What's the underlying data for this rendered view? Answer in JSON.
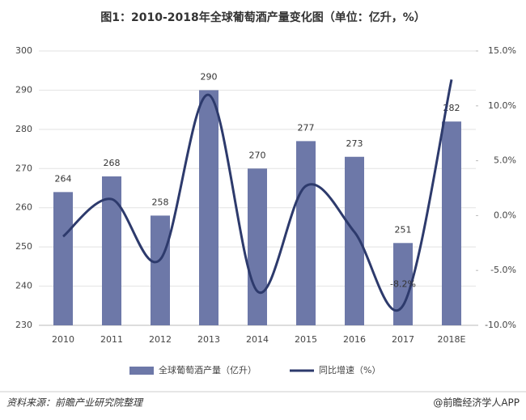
{
  "chart_data": {
    "type": "bar",
    "title": "图1：2010-2018年全球葡萄酒产量变化图（单位：亿升，%）",
    "categories": [
      "2010",
      "2011",
      "2012",
      "2013",
      "2014",
      "2015",
      "2016",
      "2017",
      "2018E"
    ],
    "series": [
      {
        "name": "全球葡萄酒产量（亿升）",
        "type": "bar",
        "axis": "y",
        "color": "#6d78a8",
        "values": [
          264,
          268,
          258,
          290,
          270,
          277,
          273,
          251,
          282
        ]
      },
      {
        "name": "同比增速（%）",
        "type": "line",
        "axis": "y2",
        "color": "#2d3a6c",
        "values": [
          -1.9,
          1.5,
          -4.0,
          11.0,
          -6.9,
          2.7,
          -1.5,
          -8.2,
          12.4
        ],
        "value_labels": [
          null,
          null,
          null,
          null,
          null,
          null,
          null,
          "-8.2%",
          null
        ]
      }
    ],
    "ylim": [
      230,
      300
    ],
    "yticks": [
      230,
      240,
      250,
      260,
      270,
      280,
      290,
      300
    ],
    "y2lim": [
      -10,
      15
    ],
    "y2ticks": [
      {
        "value": -10,
        "label": "-10.0%"
      },
      {
        "value": -5,
        "label": "-5.0%"
      },
      {
        "value": 0,
        "label": "0.0%"
      },
      {
        "value": 5,
        "label": "5.0%"
      },
      {
        "value": 10,
        "label": "10.0%"
      },
      {
        "value": 15,
        "label": "15.0%"
      }
    ],
    "grid": true,
    "legend": "bottom",
    "source": "资料来源：前瞻产业研究院整理",
    "credit": "@前瞻经济学人APP"
  }
}
